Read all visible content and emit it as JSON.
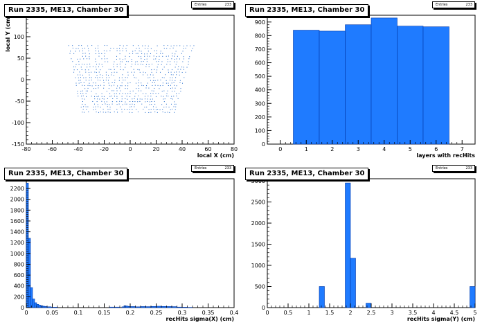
{
  "colors": {
    "bar_fill": "#1f7bff",
    "bar_stroke": "#0038a8",
    "marker": "#1a66cc",
    "frame": "#000000"
  },
  "panels": [
    {
      "title": "Run 2335, ME13, Chamber 30",
      "stats_label": "Entries",
      "stats_value": "233"
    },
    {
      "title": "Run 2335, ME13, Chamber 30",
      "stats_label": "Entries",
      "stats_value": "233"
    },
    {
      "title": "Run 2335, ME13, Chamber 30",
      "stats_label": "Entries",
      "stats_value": "233"
    },
    {
      "title": "Run 2335, ME13, Chamber 30",
      "stats_label": "Entries",
      "stats_value": "233"
    }
  ],
  "chart_data": [
    {
      "type": "scatter",
      "xlabel": "local X (cm)",
      "ylabel": "local Y (cm)",
      "xlim": [
        -80,
        80
      ],
      "ylim": [
        -150,
        150
      ],
      "xticks": [
        -80,
        -60,
        -40,
        -20,
        0,
        20,
        40,
        60,
        80
      ],
      "yticks": [
        -150,
        -100,
        -50,
        0,
        50,
        100,
        150
      ],
      "region": {
        "top_y": 80,
        "bottom_y": -75,
        "top_x": [
          -48,
          50
        ],
        "bottom_x": [
          -38,
          35
        ]
      },
      "grid": false
    },
    {
      "type": "bar",
      "xlabel": "layers with recHits",
      "ylabel": "",
      "xlim": [
        -0.5,
        7.5
      ],
      "ylim": [
        0,
        950
      ],
      "xticks": [
        0,
        1,
        2,
        3,
        4,
        5,
        6,
        7
      ],
      "yticks": [
        0,
        100,
        200,
        300,
        400,
        500,
        600,
        700,
        800,
        900
      ],
      "bins": [
        {
          "lo": 0.5,
          "hi": 1.5,
          "value": 840
        },
        {
          "lo": 1.5,
          "hi": 2.5,
          "value": 833
        },
        {
          "lo": 2.5,
          "hi": 3.5,
          "value": 880
        },
        {
          "lo": 3.5,
          "hi": 4.5,
          "value": 930
        },
        {
          "lo": 4.5,
          "hi": 5.5,
          "value": 870
        },
        {
          "lo": 5.5,
          "hi": 6.5,
          "value": 865
        }
      ]
    },
    {
      "type": "bar",
      "xlabel": "recHits sigma(X) (cm)",
      "ylabel": "",
      "xlim": [
        0,
        0.4
      ],
      "ylim": [
        0,
        2380
      ],
      "xticks": [
        0,
        0.05,
        0.1,
        0.15,
        0.2,
        0.25,
        0.3,
        0.35,
        0.4
      ],
      "yticks": [
        0,
        200,
        400,
        600,
        800,
        1000,
        1200,
        1400,
        1600,
        1800,
        2000,
        2200
      ],
      "bins": [
        {
          "lo": 0.0,
          "hi": 0.004,
          "value": 2300
        },
        {
          "lo": 0.004,
          "hi": 0.008,
          "value": 1280
        },
        {
          "lo": 0.008,
          "hi": 0.012,
          "value": 370
        },
        {
          "lo": 0.012,
          "hi": 0.016,
          "value": 160
        },
        {
          "lo": 0.016,
          "hi": 0.02,
          "value": 90
        },
        {
          "lo": 0.02,
          "hi": 0.024,
          "value": 60
        },
        {
          "lo": 0.024,
          "hi": 0.028,
          "value": 45
        },
        {
          "lo": 0.028,
          "hi": 0.032,
          "value": 35
        },
        {
          "lo": 0.032,
          "hi": 0.036,
          "value": 25
        },
        {
          "lo": 0.036,
          "hi": 0.04,
          "value": 20
        },
        {
          "lo": 0.04,
          "hi": 0.048,
          "value": 15
        },
        {
          "lo": 0.048,
          "hi": 0.06,
          "value": 8
        },
        {
          "lo": 0.16,
          "hi": 0.18,
          "value": 10
        },
        {
          "lo": 0.184,
          "hi": 0.188,
          "value": 15
        },
        {
          "lo": 0.188,
          "hi": 0.192,
          "value": 35
        },
        {
          "lo": 0.192,
          "hi": 0.196,
          "value": 28
        },
        {
          "lo": 0.196,
          "hi": 0.2,
          "value": 22
        },
        {
          "lo": 0.2,
          "hi": 0.21,
          "value": 20
        },
        {
          "lo": 0.21,
          "hi": 0.22,
          "value": 15
        },
        {
          "lo": 0.22,
          "hi": 0.23,
          "value": 20
        },
        {
          "lo": 0.23,
          "hi": 0.24,
          "value": 18
        },
        {
          "lo": 0.24,
          "hi": 0.25,
          "value": 22
        },
        {
          "lo": 0.25,
          "hi": 0.26,
          "value": 25
        },
        {
          "lo": 0.26,
          "hi": 0.27,
          "value": 22
        },
        {
          "lo": 0.27,
          "hi": 0.28,
          "value": 20
        },
        {
          "lo": 0.28,
          "hi": 0.29,
          "value": 18
        },
        {
          "lo": 0.29,
          "hi": 0.3,
          "value": 10
        },
        {
          "lo": 0.3,
          "hi": 0.31,
          "value": 8
        },
        {
          "lo": 0.31,
          "hi": 0.32,
          "value": 5
        }
      ]
    },
    {
      "type": "bar",
      "xlabel": "recHits sigma(Y) (cm)",
      "ylabel": "",
      "xlim": [
        0,
        5
      ],
      "ylim": [
        0,
        3050
      ],
      "xticks": [
        0,
        0.5,
        1,
        1.5,
        2,
        2.5,
        3,
        3.5,
        4,
        4.5,
        5
      ],
      "yticks": [
        0,
        500,
        1000,
        1500,
        2000,
        2500,
        3000
      ],
      "bins": [
        {
          "lo": 1.25,
          "hi": 1.375,
          "value": 500
        },
        {
          "lo": 1.875,
          "hi": 2.0,
          "value": 2950
        },
        {
          "lo": 2.0,
          "hi": 2.125,
          "value": 1170
        },
        {
          "lo": 2.375,
          "hi": 2.5,
          "value": 105
        },
        {
          "lo": 4.875,
          "hi": 5.0,
          "value": 500
        }
      ]
    }
  ]
}
